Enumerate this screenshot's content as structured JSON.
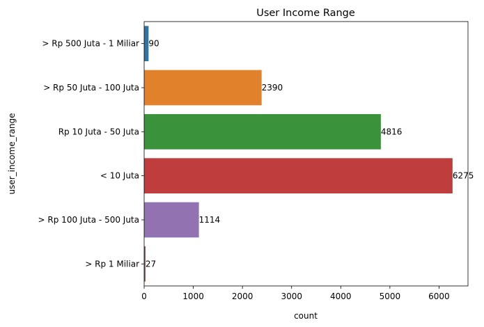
{
  "chart_data": {
    "type": "bar",
    "orientation": "horizontal",
    "title": "User Income Range",
    "xlabel": "count",
    "ylabel": "user_income_range",
    "xlim": [
      0,
      6589
    ],
    "xticks": [
      0,
      1000,
      2000,
      3000,
      4000,
      5000,
      6000
    ],
    "xtick_labels": [
      "0",
      "1000",
      "2000",
      "3000",
      "4000",
      "5000",
      "6000"
    ],
    "categories": [
      "> Rp 500 Juta - 1 Miliar",
      "> Rp 50 Juta - 100 Juta",
      "Rp 10 Juta - 50 Juta",
      "< 10 Juta",
      "> Rp 100 Juta - 500 Juta",
      "> Rp 1 Miliar"
    ],
    "values": [
      90,
      2390,
      4816,
      6275,
      1114,
      27
    ],
    "data_labels": [
      "90",
      "2390",
      "4816",
      "6275",
      "1114",
      "27"
    ],
    "colors": [
      "#3274a1",
      "#e1812c",
      "#3a923a",
      "#c03d3e",
      "#9372b2",
      "#845b53"
    ],
    "grid": false,
    "legend": "none"
  }
}
